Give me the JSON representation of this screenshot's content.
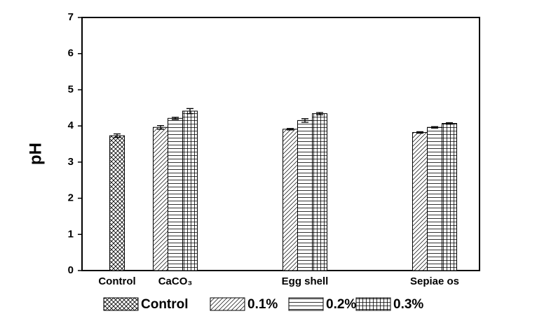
{
  "chart_data": {
    "type": "bar",
    "ylabel": "pH",
    "categories": [
      "Control",
      "CaCO₃",
      "Egg shell",
      "Sepiae os"
    ],
    "series": [
      {
        "name": "Control",
        "pattern": "crosshatch",
        "values": [
          3.73,
          null,
          null,
          null
        ],
        "errors": [
          0.05,
          null,
          null,
          null
        ]
      },
      {
        "name": "0.1%",
        "pattern": "diagonal",
        "values": [
          null,
          3.96,
          3.91,
          3.82
        ],
        "errors": [
          null,
          0.05,
          0.02,
          0.02
        ]
      },
      {
        "name": "0.2%",
        "pattern": "horizontal",
        "values": [
          null,
          4.21,
          4.15,
          3.96
        ],
        "errors": [
          null,
          0.03,
          0.05,
          0.02
        ]
      },
      {
        "name": "0.3%",
        "pattern": "grid",
        "values": [
          null,
          4.41,
          4.34,
          4.07
        ],
        "errors": [
          null,
          0.07,
          0.03,
          0.02
        ]
      }
    ],
    "ylim": [
      0,
      7
    ],
    "yticks": [
      0,
      1,
      2,
      3,
      4,
      5,
      6,
      7
    ]
  }
}
